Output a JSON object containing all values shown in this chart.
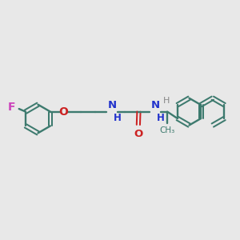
{
  "bg_color": "#e8e8e8",
  "bond_color": "#3d7a6e",
  "F_color": "#cc44bb",
  "O_color": "#cc2222",
  "N_color": "#2233cc",
  "H_color": "#888888",
  "lw": 1.7,
  "fs": 8.5,
  "fs_small": 7.5,
  "xlim": [
    0,
    10
  ],
  "ylim": [
    0,
    10
  ],
  "figsize": [
    3.0,
    3.0
  ],
  "dpi": 100
}
